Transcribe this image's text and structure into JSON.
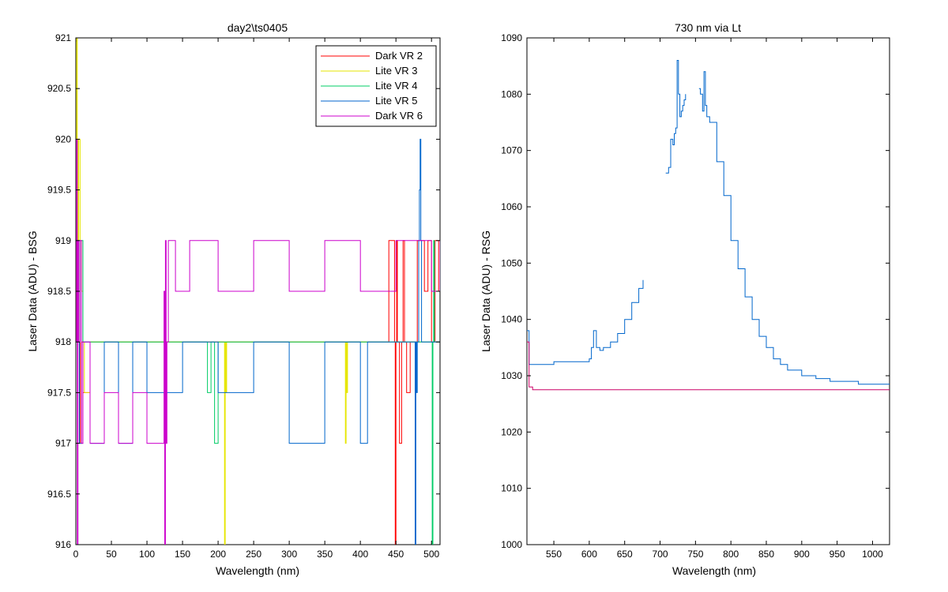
{
  "chart_data": [
    {
      "type": "line",
      "title": "day2\\ts0405",
      "xlabel": "Wavelength (nm)",
      "ylabel": "Laser Data (ADU) - BSG",
      "xlim": [
        0,
        512
      ],
      "ylim": [
        916,
        921
      ],
      "xticks": [
        0,
        50,
        100,
        150,
        200,
        250,
        300,
        350,
        400,
        450,
        500
      ],
      "yticks": [
        916,
        916.5,
        917,
        917.5,
        918,
        918.5,
        919,
        919.5,
        920,
        920.5,
        921
      ],
      "xtick_labels": [
        "0",
        "50",
        "100",
        "150",
        "200",
        "250",
        "300",
        "350",
        "400",
        "450",
        "500"
      ],
      "ytick_labels": [
        "916",
        "916.5",
        "917",
        "917.5",
        "918",
        "918.5",
        "919",
        "919.5",
        "920",
        "920.5",
        "921"
      ],
      "grid": false,
      "legend_position": "top-right",
      "series": [
        {
          "name": "Dark VR 2",
          "color": "#ff0000",
          "x": [
            0,
            2,
            4,
            6,
            8,
            10,
            20,
            100,
            200,
            300,
            400,
            430,
            440,
            448,
            449,
            450,
            451,
            452,
            455,
            458,
            460,
            462,
            465,
            470,
            480,
            490,
            495,
            500,
            505,
            510,
            512
          ],
          "y": [
            918,
            919,
            918,
            917,
            918,
            917.5,
            918,
            918,
            918,
            918,
            918,
            918,
            919,
            918,
            916,
            918,
            919,
            918,
            917,
            918,
            919,
            918,
            917.5,
            918,
            919,
            918.5,
            919,
            918,
            919,
            918.5,
            919
          ]
        },
        {
          "name": "Lite VR 3",
          "color": "#e6e600",
          "x": [
            0,
            1,
            2,
            3,
            4,
            6,
            8,
            10,
            12,
            20,
            100,
            200,
            208,
            209,
            210,
            211,
            212,
            300,
            378,
            379,
            380,
            381,
            382,
            450,
            500,
            512
          ],
          "y": [
            918,
            921,
            920,
            919,
            920,
            919,
            918.5,
            918,
            917.5,
            918,
            918,
            918,
            918,
            916,
            918,
            917.5,
            918,
            918,
            918,
            917,
            918,
            917.5,
            918,
            918,
            918,
            918
          ]
        },
        {
          "name": "Lite VR 4",
          "color": "#00cc66",
          "x": [
            0,
            2,
            4,
            6,
            10,
            20,
            100,
            180,
            185,
            190,
            195,
            200,
            250,
            300,
            350,
            400,
            450,
            490,
            500,
            501,
            502,
            503,
            504,
            510,
            512
          ],
          "y": [
            918,
            919,
            918,
            919,
            918,
            918,
            918,
            918,
            917.5,
            918,
            917,
            918,
            918,
            918,
            918,
            918,
            918,
            918,
            918,
            916,
            918,
            919,
            918,
            918,
            918
          ]
        },
        {
          "name": "Lite VR 5",
          "color": "#0066cc",
          "x": [
            0,
            5,
            10,
            20,
            40,
            60,
            80,
            100,
            150,
            200,
            250,
            300,
            350,
            400,
            410,
            420,
            440,
            460,
            470,
            476,
            477,
            478,
            479,
            480,
            482,
            483,
            484,
            485,
            486,
            490,
            500,
            512
          ],
          "y": [
            918,
            917,
            918,
            917,
            918,
            917,
            918,
            917.5,
            918,
            917.5,
            918,
            917,
            918,
            917,
            918,
            918,
            918,
            918,
            918,
            918,
            916,
            918,
            917.5,
            918,
            919,
            919.5,
            920,
            919,
            918,
            918,
            918,
            918
          ]
        },
        {
          "name": "Dark VR 6",
          "color": "#cc00cc",
          "x": [
            0,
            1,
            2,
            3,
            4,
            6,
            8,
            10,
            20,
            40,
            60,
            80,
            100,
            120,
            124,
            125,
            126,
            127,
            128,
            130,
            140,
            160,
            200,
            250,
            300,
            350,
            400,
            450,
            500,
            512
          ],
          "y": [
            918,
            920,
            916,
            919,
            918,
            919,
            917,
            918,
            917,
            917.5,
            917,
            917.5,
            917,
            917,
            918.5,
            916,
            919,
            917,
            918,
            919,
            918.5,
            919,
            918.5,
            919,
            918.5,
            919,
            918.5,
            919,
            918.5,
            919
          ]
        }
      ]
    },
    {
      "type": "line",
      "title": "730 nm via Lt",
      "xlabel": "Wavelength (nm)",
      "ylabel": "Laser Data (ADU) - RSG",
      "xlim": [
        512,
        1024
      ],
      "ylim": [
        1000,
        1090
      ],
      "xticks": [
        550,
        600,
        650,
        700,
        750,
        800,
        850,
        900,
        950,
        1000
      ],
      "yticks": [
        1000,
        1010,
        1020,
        1030,
        1040,
        1050,
        1060,
        1070,
        1080,
        1090
      ],
      "xtick_labels": [
        "550",
        "600",
        "650",
        "700",
        "750",
        "800",
        "850",
        "900",
        "950",
        "1000"
      ],
      "ytick_labels": [
        "1000",
        "1010",
        "1020",
        "1030",
        "1040",
        "1050",
        "1060",
        "1070",
        "1080",
        "1090"
      ],
      "grid": false,
      "series": [
        {
          "color": "#0066cc",
          "segments": [
            {
              "x": [
                512,
                515,
                520,
                530,
                550,
                570,
                590,
                600,
                603,
                606,
                610,
                615,
                620,
                630,
                640,
                650,
                660,
                670,
                676
              ],
              "y": [
                1038,
                1032,
                1032,
                1032,
                1032.5,
                1032.5,
                1032.5,
                1033,
                1035,
                1038,
                1035,
                1034.5,
                1035,
                1036,
                1037.5,
                1040,
                1043,
                1045.5,
                1047
              ]
            },
            {
              "x": [
                708,
                712,
                715,
                718,
                720,
                722,
                724,
                726,
                728,
                730,
                732,
                734,
                736
              ],
              "y": [
                1066,
                1067,
                1072,
                1071,
                1073,
                1074,
                1086,
                1080,
                1076,
                1077,
                1078,
                1079,
                1080
              ]
            },
            {
              "x": [
                755,
                757,
                760,
                762,
                764,
                766,
                770,
                780,
                790,
                800,
                810,
                820,
                830,
                840,
                850,
                860,
                870,
                880,
                890,
                900,
                910,
                920,
                930,
                940,
                950,
                960,
                970,
                980,
                990,
                1000,
                1010,
                1020,
                1024
              ],
              "y": [
                1081,
                1080,
                1077,
                1084,
                1078,
                1076,
                1075,
                1068,
                1062,
                1054,
                1049,
                1044,
                1040,
                1037,
                1035,
                1033,
                1032,
                1031,
                1031,
                1030,
                1030,
                1029.5,
                1029.5,
                1029,
                1029,
                1029,
                1029,
                1028.5,
                1028.5,
                1028.5,
                1028.5,
                1028.5,
                1028.5
              ]
            }
          ]
        },
        {
          "color": "#cc0066",
          "segments": [
            {
              "x": [
                512,
                515,
                520,
                1024
              ],
              "y": [
                1036,
                1028,
                1027.5,
                1027.5
              ]
            }
          ]
        }
      ]
    }
  ]
}
